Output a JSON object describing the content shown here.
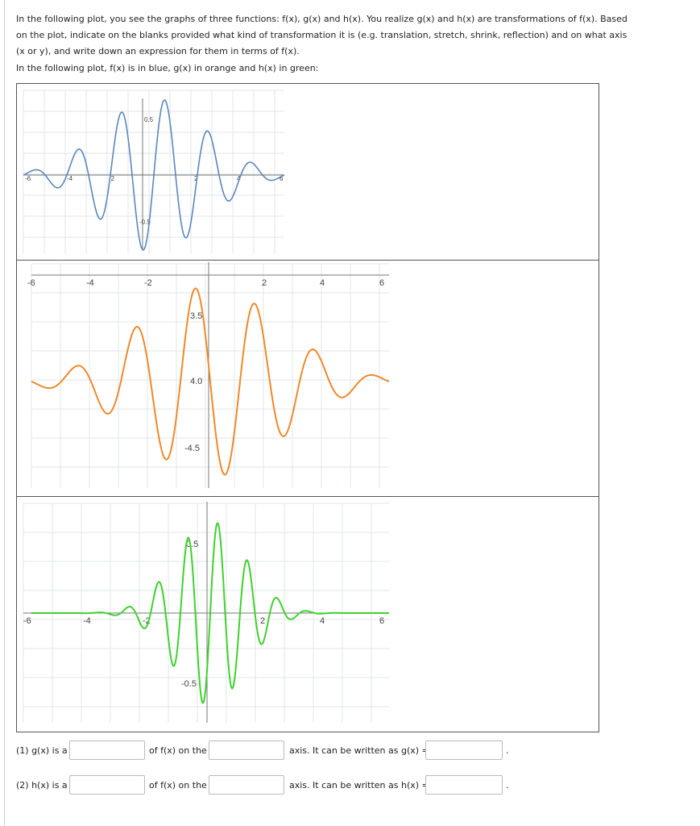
{
  "intro_text": "In the following plot, you see the graphs of three functions: f(x), g(x) and h(x). You realize g(x) and h(x) are transformations of f(x). Based on the plot, indicate on the blanks provided what kind of transformation it is (e.g. translation, stretch, shrink, reflection) and on what axis (x or y), and write down an expression for them in terms of f(x).",
  "colors_text": "In the following plot, f(x) is in blue, g(x) in orange and h(x) in green:",
  "colors": {
    "f": "#5a86bd",
    "g": "#f0892a",
    "h": "#3fd12e",
    "grid": "#e2e6ea",
    "axis": "#777777"
  },
  "plot_f": {
    "x_ticks": [
      "-6",
      "-4",
      "-2",
      "2",
      "4",
      "6"
    ],
    "y_ticks": [
      "0.5",
      "-0.5"
    ]
  },
  "plot_g": {
    "x_ticks": [
      "-6",
      "-4",
      "-2",
      "2",
      "4",
      "6"
    ],
    "y_ticks": [
      "3.5",
      "4.0",
      "-4.5"
    ]
  },
  "plot_h": {
    "x_ticks": [
      "-6",
      "-4",
      "-2",
      "2",
      "4",
      "6"
    ],
    "y_ticks": [
      "0.5",
      "-0.5"
    ]
  },
  "questions": [
    {
      "prefix": "(1) g(x) is a",
      "mid": "of f(x) on the",
      "suffix": "axis. It can be written as g(x) =",
      "end": "."
    },
    {
      "prefix": "(2) h(x) is a",
      "mid": "of f(x) on the",
      "suffix": "axis. It can be written as h(x) =",
      "end": "."
    }
  ],
  "answers": {
    "q1_type": "",
    "q1_axis": "",
    "q1_expr": "",
    "q2_type": "",
    "q2_axis": "",
    "q2_expr": ""
  }
}
